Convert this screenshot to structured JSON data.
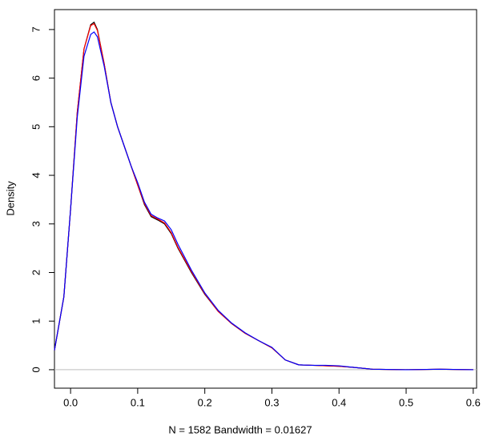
{
  "chart_data": {
    "type": "line",
    "x_label": "N = 1582   Bandwidth = 0.01627",
    "y_label": "Density",
    "x": [
      -0.024,
      -0.01,
      0,
      0.01,
      0.02,
      0.03,
      0.035,
      0.04,
      0.05,
      0.06,
      0.07,
      0.08,
      0.09,
      0.1,
      0.11,
      0.12,
      0.13,
      0.14,
      0.15,
      0.16,
      0.18,
      0.2,
      0.22,
      0.24,
      0.26,
      0.28,
      0.3,
      0.32,
      0.34,
      0.36,
      0.38,
      0.4,
      0.42,
      0.45,
      0.5,
      0.55,
      0.6
    ],
    "series": [
      {
        "color": "#000000",
        "values": [
          0.4,
          1.5,
          3.3,
          5.3,
          6.6,
          7.1,
          7.15,
          7.0,
          6.3,
          5.5,
          5.0,
          4.6,
          4.2,
          3.8,
          3.4,
          3.15,
          3.08,
          3.0,
          2.8,
          2.5,
          2.0,
          1.55,
          1.2,
          0.95,
          0.75,
          0.6,
          0.45,
          0.2,
          0.1,
          0.09,
          0.08,
          0.07,
          0.05,
          0.01,
          0.0,
          0.01,
          0.0
        ]
      },
      {
        "color": "#ff0000",
        "values": [
          0.4,
          1.5,
          3.3,
          5.3,
          6.6,
          7.08,
          7.12,
          6.98,
          6.3,
          5.5,
          5.0,
          4.6,
          4.2,
          3.8,
          3.42,
          3.17,
          3.1,
          3.02,
          2.82,
          2.52,
          2.02,
          1.56,
          1.2,
          0.95,
          0.75,
          0.6,
          0.45,
          0.2,
          0.1,
          0.09,
          0.08,
          0.07,
          0.05,
          0.01,
          0.0,
          0.01,
          0.0
        ]
      },
      {
        "color": "#0000ff",
        "values": [
          0.4,
          1.5,
          3.3,
          5.2,
          6.45,
          6.9,
          6.95,
          6.85,
          6.25,
          5.5,
          5.0,
          4.6,
          4.2,
          3.85,
          3.45,
          3.2,
          3.12,
          3.06,
          2.88,
          2.58,
          2.05,
          1.58,
          1.22,
          0.96,
          0.76,
          0.6,
          0.46,
          0.2,
          0.1,
          0.09,
          0.09,
          0.08,
          0.05,
          0.01,
          0.0,
          0.01,
          0.0
        ]
      }
    ],
    "xlim": [
      -0.024,
      0.605
    ],
    "ylim": [
      -0.38,
      7.41
    ],
    "xticks": [
      {
        "value": 0,
        "label": "0.0"
      },
      0.1,
      0.2,
      0.3,
      0.4,
      0.5,
      0.6
    ],
    "yticks": [
      0,
      1,
      2,
      3,
      4,
      5,
      6,
      7
    ],
    "zero_line_color": "#bebebe"
  }
}
